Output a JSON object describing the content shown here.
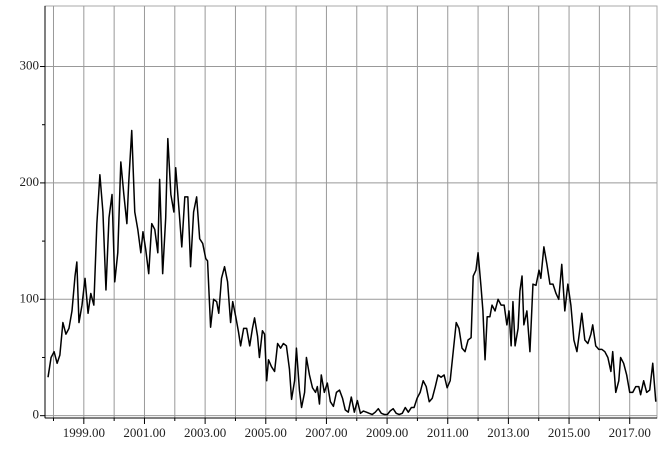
{
  "chart_data": {
    "type": "line",
    "color": "#000000",
    "grid": true,
    "x": [
      1997.82,
      1997.92,
      1998.02,
      1998.12,
      1998.21,
      1998.31,
      1998.41,
      1998.51,
      1998.61,
      1998.71,
      1998.77,
      1998.84,
      1998.94,
      1999.04,
      1999.14,
      1999.23,
      1999.33,
      1999.43,
      1999.53,
      1999.63,
      1999.73,
      1999.83,
      1999.93,
      2000.02,
      2000.12,
      2000.22,
      2000.32,
      2000.42,
      2000.48,
      2000.58,
      2000.68,
      2000.78,
      2000.88,
      2000.95,
      2001.04,
      2001.14,
      2001.24,
      2001.34,
      2001.44,
      2001.5,
      2001.6,
      2001.7,
      2001.77,
      2001.87,
      2001.97,
      2002.03,
      2002.13,
      2002.23,
      2002.33,
      2002.43,
      2002.52,
      2002.62,
      2002.72,
      2002.82,
      2002.92,
      2003.02,
      2003.08,
      2003.18,
      2003.28,
      2003.38,
      2003.45,
      2003.54,
      2003.64,
      2003.74,
      2003.84,
      2003.91,
      2004.01,
      2004.1,
      2004.17,
      2004.27,
      2004.37,
      2004.47,
      2004.56,
      2004.63,
      2004.73,
      2004.79,
      2004.89,
      2004.96,
      2005.03,
      2005.09,
      2005.19,
      2005.29,
      2005.39,
      2005.49,
      2005.58,
      2005.68,
      2005.78,
      2005.85,
      2005.95,
      2006.01,
      2006.11,
      2006.18,
      2006.28,
      2006.34,
      2006.44,
      2006.54,
      2006.64,
      2006.7,
      2006.77,
      2006.83,
      2006.93,
      2007.03,
      2007.13,
      2007.23,
      2007.33,
      2007.43,
      2007.53,
      2007.62,
      2007.72,
      2007.82,
      2007.92,
      2008.02,
      2008.12,
      2008.22,
      2008.32,
      2008.41,
      2008.51,
      2008.61,
      2008.71,
      2008.81,
      2008.91,
      2009.01,
      2009.1,
      2009.2,
      2009.3,
      2009.4,
      2009.5,
      2009.6,
      2009.7,
      2009.8,
      2009.89,
      2009.99,
      2010.09,
      2010.19,
      2010.29,
      2010.39,
      2010.49,
      2010.59,
      2010.68,
      2010.78,
      2010.88,
      2010.98,
      2011.08,
      2011.18,
      2011.28,
      2011.37,
      2011.47,
      2011.57,
      2011.67,
      2011.77,
      2011.84,
      2011.93,
      2012.0,
      2012.1,
      2012.16,
      2012.23,
      2012.3,
      2012.39,
      2012.46,
      2012.56,
      2012.66,
      2012.76,
      2012.86,
      2012.95,
      2013.02,
      2013.09,
      2013.15,
      2013.22,
      2013.32,
      2013.38,
      2013.45,
      2013.51,
      2013.61,
      2013.71,
      2013.81,
      2013.91,
      2014.01,
      2014.07,
      2014.17,
      2014.27,
      2014.37,
      2014.47,
      2014.57,
      2014.66,
      2014.76,
      2014.86,
      2014.96,
      2015.06,
      2015.16,
      2015.26,
      2015.36,
      2015.42,
      2015.52,
      2015.62,
      2015.72,
      2015.78,
      2015.88,
      2015.98,
      2016.08,
      2016.18,
      2016.28,
      2016.38,
      2016.44,
      2016.54,
      2016.64,
      2016.7,
      2016.8,
      2016.9,
      2017.0,
      2017.1,
      2017.2,
      2017.3,
      2017.36,
      2017.46,
      2017.56,
      2017.66,
      2017.76,
      2017.86
    ],
    "values": [
      33,
      50,
      55,
      45,
      52,
      80,
      70,
      75,
      90,
      120,
      132,
      80,
      95,
      118,
      88,
      105,
      95,
      165,
      207,
      175,
      108,
      170,
      190,
      115,
      140,
      218,
      190,
      165,
      200,
      245,
      175,
      160,
      140,
      158,
      143,
      122,
      165,
      160,
      140,
      203,
      122,
      170,
      238,
      190,
      175,
      213,
      180,
      145,
      188,
      188,
      128,
      175,
      188,
      152,
      148,
      135,
      133,
      76,
      100,
      98,
      88,
      118,
      128,
      115,
      80,
      98,
      85,
      72,
      60,
      75,
      75,
      60,
      75,
      84,
      68,
      50,
      73,
      70,
      30,
      48,
      42,
      38,
      62,
      58,
      62,
      60,
      40,
      14,
      30,
      58,
      22,
      7,
      20,
      50,
      35,
      24,
      20,
      25,
      10,
      35,
      20,
      28,
      12,
      8,
      20,
      22,
      15,
      5,
      3,
      16,
      3,
      13,
      2,
      4,
      3,
      2,
      1,
      3,
      6,
      2,
      1,
      1,
      4,
      6,
      2,
      1,
      2,
      7,
      3,
      7,
      7,
      15,
      20,
      30,
      25,
      12,
      15,
      25,
      35,
      33,
      35,
      24,
      30,
      55,
      80,
      75,
      58,
      55,
      65,
      67,
      120,
      125,
      140,
      110,
      90,
      48,
      85,
      85,
      95,
      90,
      100,
      95,
      95,
      78,
      90,
      60,
      98,
      60,
      75,
      107,
      120,
      78,
      90,
      55,
      113,
      112,
      125,
      118,
      145,
      130,
      113,
      113,
      105,
      100,
      130,
      90,
      113,
      95,
      65,
      55,
      75,
      88,
      65,
      62,
      70,
      78,
      60,
      57,
      57,
      55,
      50,
      38,
      55,
      20,
      30,
      50,
      45,
      35,
      20,
      20,
      25,
      25,
      18,
      30,
      20,
      22,
      45,
      12
    ],
    "xlim": [
      1997.72,
      2017.9
    ],
    "xticks": [
      {
        "value": 1999,
        "label": "1999.00"
      },
      {
        "value": 2001,
        "label": "2001.00"
      },
      {
        "value": 2003,
        "label": "2003.00"
      },
      {
        "value": 2005,
        "label": "2005.00"
      },
      {
        "value": 2007,
        "label": "2007.00"
      },
      {
        "value": 2009,
        "label": "2009.00"
      },
      {
        "value": 2011,
        "label": "2011.00"
      },
      {
        "value": 2013,
        "label": "2013.00"
      },
      {
        "value": 2015,
        "label": "2015.00"
      },
      {
        "value": 2017,
        "label": "2017.00"
      }
    ],
    "xminorticks": [
      1998,
      2000,
      2002,
      2004,
      2006,
      2008,
      2010,
      2012,
      2014,
      2016
    ],
    "ylim": [
      -2,
      352
    ],
    "yticks": [
      0,
      100,
      200,
      300
    ],
    "yminorticks": [
      50,
      150,
      250
    ]
  }
}
